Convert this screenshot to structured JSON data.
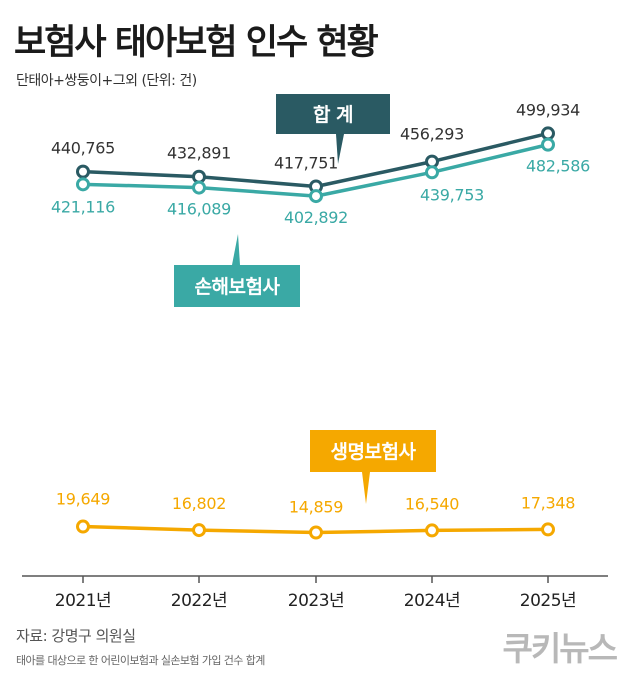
{
  "title": "보험사 태아보험 인수 현황",
  "subtitle": "단태아+쌍둥이+그외 (단위: 건)",
  "source": "자료: 강명구 의원실",
  "note": "태아를 대상으로 한 어린이보험과 실손보험 가입 건수 합계",
  "logo": "쿠키뉴스",
  "colors": {
    "total": "#2a5a63",
    "nonlife": "#3aa9a5",
    "life": "#f5a800",
    "axis": "#555555"
  },
  "chart_data": {
    "type": "line",
    "categories": [
      "2021년",
      "2022년",
      "2023년",
      "2024년",
      "2025년"
    ],
    "series": [
      {
        "name": "합 계",
        "key": "total",
        "values": [
          440765,
          432891,
          417751,
          456293,
          499934
        ],
        "labels": [
          "440,765",
          "432,891",
          "417,751",
          "456,293",
          "499,934"
        ]
      },
      {
        "name": "손해보험사",
        "key": "nonlife",
        "values": [
          421116,
          416089,
          402892,
          439753,
          482586
        ],
        "labels": [
          "421,116",
          "416,089",
          "402,892",
          "439,753",
          "482,586"
        ]
      },
      {
        "name": "생명보험사",
        "key": "life",
        "values": [
          19649,
          16802,
          14859,
          16540,
          17348
        ],
        "labels": [
          "19,649",
          "16,802",
          "14,859",
          "16,540",
          "17,348"
        ]
      }
    ],
    "unit": "건"
  }
}
